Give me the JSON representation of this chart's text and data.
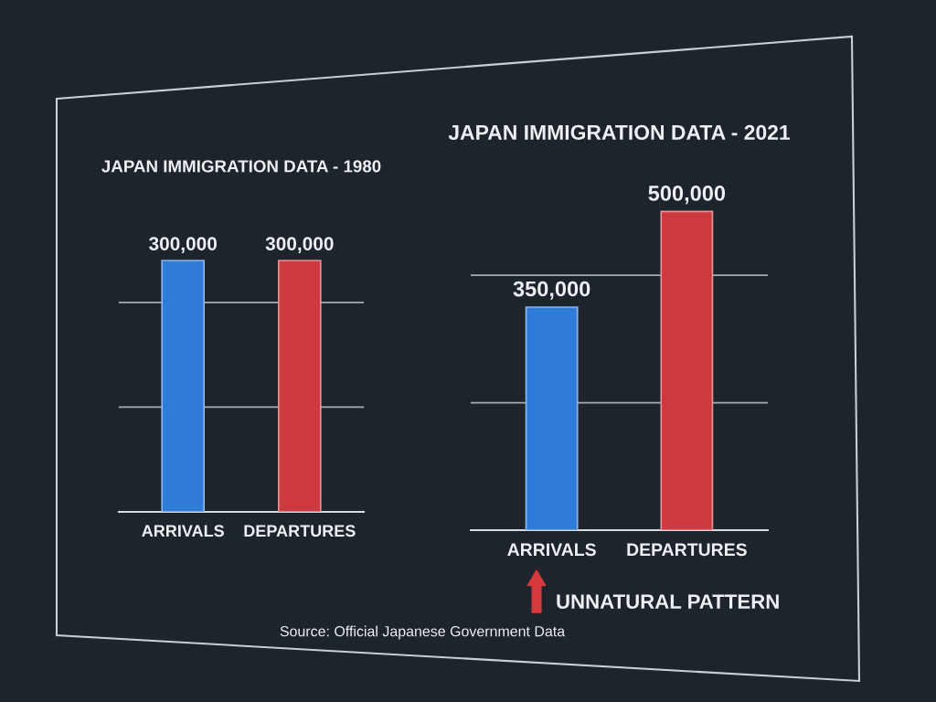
{
  "chart_data": [
    {
      "type": "bar",
      "title": "JAPAN IMMIGRATION DATA - 1980",
      "categories": [
        "ARRIVALS",
        "DEPARTURES"
      ],
      "values": [
        300000,
        300000
      ],
      "colors": [
        "#2f7bd8",
        "#cc3a40"
      ],
      "value_labels": [
        "300,000",
        "300,000"
      ],
      "ref_lines": [
        {
          "axis": "y",
          "value": 125000,
          "color": "#a3abb3"
        },
        {
          "axis": "y",
          "value": 250000,
          "color": "#a3abb3"
        }
      ],
      "tick_labels": "x"
    },
    {
      "type": "bar",
      "title": "JAPAN IMMIGRATION DATA - 2021",
      "categories": [
        "ARRIVALS",
        "DEPARTURES"
      ],
      "values": [
        350000,
        500000
      ],
      "colors": [
        "#2f7bd8",
        "#cc3a40"
      ],
      "value_labels": [
        "350,000",
        "500,000"
      ],
      "ref_lines": [
        {
          "axis": "y",
          "value": 200000,
          "color": "#a3abb3"
        },
        {
          "axis": "y",
          "value": 400000,
          "color": "#a3abb3"
        }
      ],
      "tick_labels": "x",
      "annotations": [
        "UNNATURAL PATTERN",
        "Source: Official Japanese Government Data"
      ]
    }
  ]
}
